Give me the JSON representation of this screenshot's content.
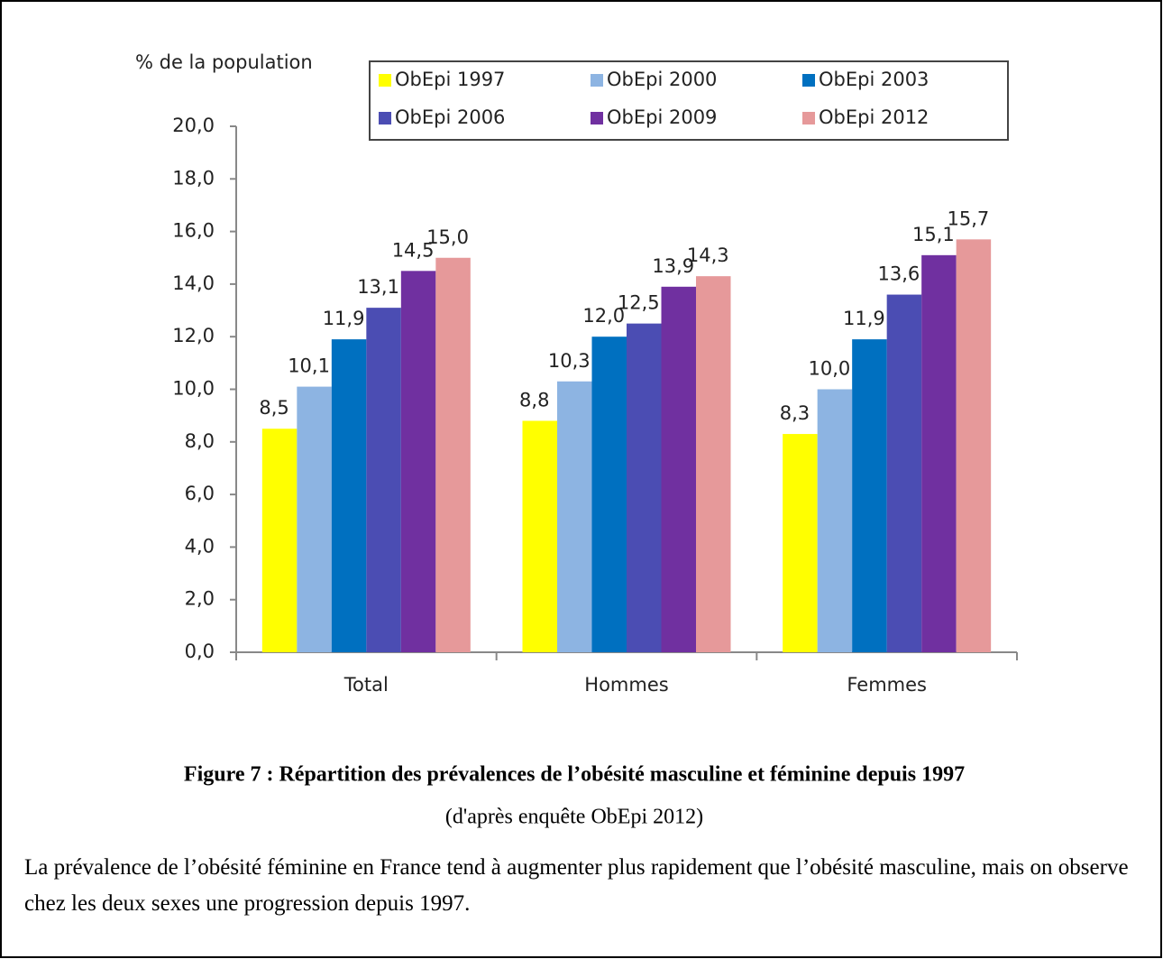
{
  "chart_data": {
    "type": "bar",
    "y_axis_label": "% de la population",
    "categories": [
      "Total",
      "Hommes",
      "Femmes"
    ],
    "series": [
      {
        "name": "ObEpi 1997",
        "color": "#ffff00",
        "values": [
          8.5,
          8.8,
          8.3
        ],
        "value_labels": [
          "8,5",
          "8,8",
          "8,3"
        ]
      },
      {
        "name": "ObEpi 2000",
        "color": "#8db4e2",
        "values": [
          10.1,
          10.3,
          10.0
        ],
        "value_labels": [
          "10,1",
          "10,3",
          "10,0"
        ]
      },
      {
        "name": "ObEpi 2003",
        "color": "#0070c0",
        "values": [
          11.9,
          12.0,
          11.9
        ],
        "value_labels": [
          "11,9",
          "12,0",
          "11,9"
        ]
      },
      {
        "name": "ObEpi 2006",
        "color": "#4b4db3",
        "values": [
          13.1,
          12.5,
          13.6
        ],
        "value_labels": [
          "13,1",
          "12,5",
          "13,6"
        ]
      },
      {
        "name": "ObEpi 2009",
        "color": "#7030a0",
        "values": [
          14.5,
          13.9,
          15.1
        ],
        "value_labels": [
          "14,5",
          "13,9",
          "15,1"
        ]
      },
      {
        "name": "ObEpi 2012",
        "color": "#e6999a",
        "values": [
          15.0,
          14.3,
          15.7
        ],
        "value_labels": [
          "15,0",
          "14,3",
          "15,7"
        ]
      }
    ],
    "ylim": [
      0,
      20
    ],
    "yticks": [
      {
        "value": 0,
        "label": "0,0"
      },
      {
        "value": 2,
        "label": "2,0"
      },
      {
        "value": 4,
        "label": "4,0"
      },
      {
        "value": 6,
        "label": "6,0"
      },
      {
        "value": 8,
        "label": "8,0"
      },
      {
        "value": 10,
        "label": "10,0"
      },
      {
        "value": 12,
        "label": "12,0"
      },
      {
        "value": 14,
        "label": "14,0"
      },
      {
        "value": 16,
        "label": "16,0"
      },
      {
        "value": 18,
        "label": "18,0"
      },
      {
        "value": 20,
        "label": "20,0"
      }
    ],
    "legend": "top-right",
    "grid": false
  },
  "caption": {
    "title": "Figure 7 : Répartition des prévalences de l’obésité masculine et féminine depuis 1997",
    "source": "(d'après enquête ObEpi 2012)"
  },
  "paragraph": "La prévalence de l’obésité féminine en France tend à augmenter plus rapidement que l’obésité masculine, mais on observe chez les deux sexes une progression depuis 1997."
}
